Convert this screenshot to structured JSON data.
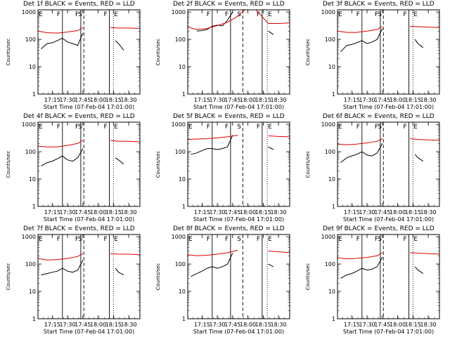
{
  "colors": {
    "events": "#000000",
    "lld": "#dd0000",
    "background": "#ffffff",
    "axes": "#000000"
  },
  "chart_data": [
    {
      "type": "line",
      "title": "Det 1f BLACK = Events, RED = LLD",
      "ylabel": "Counts/sec",
      "xlabel": "Start Time (07-Feb-04 17:01:00)",
      "x_ticks": [
        "17:15",
        "17:30",
        "17:45",
        "18:00",
        "18:15",
        "18:30"
      ],
      "y_ticks": [
        "1",
        "10",
        "100",
        "1000"
      ],
      "ylim": [
        1,
        1200
      ],
      "yscale": "log",
      "xlim": [
        "17:01",
        "18:41"
      ],
      "markers": [
        {
          "label": "E",
          "time": "17:01"
        },
        {
          "label": "F",
          "time": "17:25"
        },
        {
          "label": "F",
          "time": "17:43"
        },
        {
          "label": "S",
          "time": "17:46"
        },
        {
          "label": "F",
          "time": "18:11"
        },
        {
          "label": "E",
          "time": "18:15"
        }
      ],
      "series": [
        {
          "name": "Events",
          "x": [
            "17:04",
            "17:10",
            "17:15",
            "17:20",
            "17:25",
            "17:30",
            "17:35",
            "17:40",
            "17:45",
            "18:17",
            "18:20",
            "18:25"
          ],
          "values": [
            45,
            70,
            75,
            90,
            110,
            80,
            70,
            60,
            170,
            90,
            70,
            40
          ]
        },
        {
          "name": "LLD",
          "x": [
            "17:01",
            "17:10",
            "17:20",
            "17:30",
            "17:40",
            "17:45",
            "18:12",
            "18:20",
            "18:30",
            "18:41"
          ],
          "values": [
            200,
            175,
            170,
            185,
            210,
            270,
            270,
            260,
            260,
            250
          ]
        }
      ]
    },
    {
      "type": "line",
      "title": "Det 2f BLACK = Events, RED = LLD",
      "ylabel": "Counts/sec",
      "xlabel": "Start Time (07-Feb-04 17:01:00)",
      "x_ticks": [
        "17:15",
        "17:30",
        "17:45",
        "18:00",
        "18:15",
        "18:30"
      ],
      "y_ticks": [
        "1",
        "10",
        "100",
        "1000"
      ],
      "ylim": [
        1,
        1200
      ],
      "yscale": "log",
      "xlim": [
        "17:01",
        "18:41"
      ],
      "markers": [
        {
          "label": "F",
          "time": "17:25"
        },
        {
          "label": "F",
          "time": "17:43"
        },
        {
          "label": "S",
          "time": "17:55"
        },
        {
          "label": "F",
          "time": "18:14"
        },
        {
          "label": "E",
          "time": "18:19"
        }
      ],
      "series": [
        {
          "name": "Events",
          "x": [
            "17:10",
            "17:15",
            "17:20",
            "17:25",
            "17:30",
            "17:35",
            "17:40",
            "17:45",
            "18:20",
            "18:25"
          ],
          "values": [
            200,
            210,
            230,
            300,
            330,
            310,
            500,
            1000,
            200,
            150
          ]
        },
        {
          "name": "LLD",
          "x": [
            "17:01",
            "17:10",
            "17:20",
            "17:30",
            "17:40",
            "17:50",
            "17:57",
            "18:08",
            "18:20",
            "18:30",
            "18:41"
          ],
          "values": [
            280,
            230,
            250,
            320,
            420,
            700,
            1200,
            1200,
            380,
            380,
            400
          ]
        }
      ]
    },
    {
      "type": "line",
      "title": "Det 3f BLACK = Events, RED = LLD",
      "ylabel": "Counts/sec",
      "xlabel": "Start Time (07-Feb-04 17:01:00)",
      "x_ticks": [
        "17:15",
        "17:30",
        "17:45",
        "18:00",
        "18:15",
        "18:30"
      ],
      "y_ticks": [
        "1",
        "10",
        "100",
        "1000"
      ],
      "ylim": [
        1,
        1200
      ],
      "yscale": "log",
      "xlim": [
        "17:01",
        "18:41"
      ],
      "markers": [
        {
          "label": "E",
          "time": "17:01"
        },
        {
          "label": "F",
          "time": "17:25"
        },
        {
          "label": "F",
          "time": "17:43"
        },
        {
          "label": "S",
          "time": "17:46"
        },
        {
          "label": "F",
          "time": "18:11"
        },
        {
          "label": "E",
          "time": "18:15"
        }
      ],
      "series": [
        {
          "name": "Events",
          "x": [
            "17:04",
            "17:10",
            "17:15",
            "17:20",
            "17:25",
            "17:30",
            "17:35",
            "17:40",
            "17:45",
            "18:17",
            "18:20",
            "18:25"
          ],
          "values": [
            35,
            60,
            65,
            75,
            90,
            70,
            80,
            100,
            250,
            100,
            70,
            50
          ]
        },
        {
          "name": "LLD",
          "x": [
            "17:01",
            "17:10",
            "17:20",
            "17:30",
            "17:40",
            "17:45",
            "18:12",
            "18:20",
            "18:30",
            "18:41"
          ],
          "values": [
            200,
            180,
            180,
            200,
            230,
            300,
            300,
            290,
            280,
            270
          ]
        }
      ]
    },
    {
      "type": "line",
      "title": "Det 4f BLACK = Events, RED = LLD",
      "ylabel": "Counts/sec",
      "xlabel": "Start Time (07-Feb-04 17:01:00)",
      "x_ticks": [
        "17:15",
        "17:30",
        "17:45",
        "18:00",
        "18:15",
        "18:30"
      ],
      "y_ticks": [
        "1",
        "10",
        "100",
        "1000"
      ],
      "ylim": [
        1,
        1200
      ],
      "yscale": "log",
      "xlim": [
        "17:01",
        "18:41"
      ],
      "markers": [
        {
          "label": "E",
          "time": "17:01"
        },
        {
          "label": "F",
          "time": "17:25"
        },
        {
          "label": "F",
          "time": "17:43"
        },
        {
          "label": "S",
          "time": "17:46"
        },
        {
          "label": "F",
          "time": "18:11"
        },
        {
          "label": "E",
          "time": "18:15"
        }
      ],
      "series": [
        {
          "name": "Events",
          "x": [
            "17:04",
            "17:10",
            "17:15",
            "17:20",
            "17:25",
            "17:30",
            "17:35",
            "17:40",
            "17:45",
            "18:17",
            "18:20",
            "18:25"
          ],
          "values": [
            30,
            40,
            45,
            55,
            70,
            50,
            45,
            60,
            130,
            60,
            50,
            35
          ]
        },
        {
          "name": "LLD",
          "x": [
            "17:01",
            "17:10",
            "17:20",
            "17:30",
            "17:40",
            "17:45",
            "18:12",
            "18:20",
            "18:30",
            "18:41"
          ],
          "values": [
            160,
            150,
            150,
            170,
            200,
            260,
            260,
            240,
            240,
            230
          ]
        }
      ]
    },
    {
      "type": "line",
      "title": "Det 5f BLACK = Events, RED = LLD",
      "ylabel": "Counts/sec",
      "xlabel": "Start Time (07-Feb-04 17:01:00)",
      "x_ticks": [
        "17:15",
        "17:30",
        "17:45",
        "18:00",
        "18:15",
        "18:30"
      ],
      "y_ticks": [
        "1",
        "10",
        "100",
        "1000"
      ],
      "ylim": [
        1,
        1200
      ],
      "yscale": "log",
      "xlim": [
        "17:01",
        "18:41"
      ],
      "markers": [
        {
          "label": "E",
          "time": "17:01"
        },
        {
          "label": "F",
          "time": "17:25"
        },
        {
          "label": "F",
          "time": "17:43"
        },
        {
          "label": "S",
          "time": "17:55"
        },
        {
          "label": "F",
          "time": "18:14"
        },
        {
          "label": "E",
          "time": "18:19"
        }
      ],
      "series": [
        {
          "name": "Events",
          "x": [
            "17:04",
            "17:10",
            "17:15",
            "17:20",
            "17:25",
            "17:30",
            "17:35",
            "17:40",
            "17:45",
            "18:20",
            "18:25"
          ],
          "values": [
            80,
            90,
            110,
            130,
            130,
            120,
            130,
            150,
            400,
            150,
            120
          ]
        },
        {
          "name": "LLD",
          "x": [
            "17:01",
            "17:10",
            "17:20",
            "17:30",
            "17:40",
            "17:50",
            "18:20",
            "18:30",
            "18:41"
          ],
          "values": [
            280,
            290,
            300,
            320,
            350,
            400,
            380,
            360,
            350
          ]
        }
      ]
    },
    {
      "type": "line",
      "title": "Det 6f BLACK = Events, RED = LLD",
      "ylabel": "Counts/sec",
      "xlabel": "Start Time (07-Feb-04 17:01:00)",
      "x_ticks": [
        "17:15",
        "17:30",
        "17:45",
        "18:00",
        "18:15",
        "18:30"
      ],
      "y_ticks": [
        "1",
        "10",
        "100",
        "1000"
      ],
      "ylim": [
        1,
        1200
      ],
      "yscale": "log",
      "xlim": [
        "17:01",
        "18:41"
      ],
      "markers": [
        {
          "label": "E",
          "time": "17:01"
        },
        {
          "label": "F",
          "time": "17:25"
        },
        {
          "label": "F",
          "time": "17:43"
        },
        {
          "label": "S",
          "time": "17:46"
        },
        {
          "label": "F",
          "time": "18:11"
        },
        {
          "label": "E",
          "time": "18:15"
        }
      ],
      "series": [
        {
          "name": "Events",
          "x": [
            "17:04",
            "17:10",
            "17:15",
            "17:20",
            "17:25",
            "17:30",
            "17:35",
            "17:40",
            "17:45",
            "18:17",
            "18:20",
            "18:25"
          ],
          "values": [
            40,
            60,
            70,
            80,
            100,
            75,
            70,
            90,
            200,
            80,
            60,
            45
          ]
        },
        {
          "name": "LLD",
          "x": [
            "17:01",
            "17:10",
            "17:20",
            "17:30",
            "17:40",
            "17:45",
            "18:12",
            "18:20",
            "18:30",
            "18:41"
          ],
          "values": [
            190,
            180,
            190,
            210,
            240,
            300,
            300,
            280,
            270,
            260
          ]
        }
      ]
    },
    {
      "type": "line",
      "title": "Det 7f BLACK = Events, RED = LLD",
      "ylabel": "Counts/sec",
      "xlabel": "Start Time (07-Feb-04 17:01:00)",
      "x_ticks": [
        "17:15",
        "17:30",
        "17:45",
        "18:00",
        "18:15",
        "18:30"
      ],
      "y_ticks": [
        "1",
        "10",
        "100",
        "1000"
      ],
      "ylim": [
        1,
        1200
      ],
      "yscale": "log",
      "xlim": [
        "17:01",
        "18:41"
      ],
      "markers": [
        {
          "label": "E",
          "time": "17:01"
        },
        {
          "label": "F",
          "time": "17:25"
        },
        {
          "label": "F",
          "time": "17:43"
        },
        {
          "label": "S",
          "time": "17:46"
        },
        {
          "label": "F",
          "time": "18:11"
        },
        {
          "label": "E",
          "time": "18:15"
        }
      ],
      "series": [
        {
          "name": "Events",
          "x": [
            "17:04",
            "17:10",
            "17:15",
            "17:20",
            "17:25",
            "17:30",
            "17:35",
            "17:40",
            "17:45",
            "18:17",
            "18:20",
            "18:25"
          ],
          "values": [
            40,
            45,
            50,
            55,
            70,
            55,
            50,
            60,
            140,
            70,
            50,
            40
          ]
        },
        {
          "name": "LLD",
          "x": [
            "17:01",
            "17:10",
            "17:20",
            "17:30",
            "17:40",
            "17:45",
            "18:12",
            "18:20",
            "18:30",
            "18:41"
          ],
          "values": [
            160,
            140,
            145,
            160,
            190,
            240,
            240,
            230,
            230,
            220
          ]
        }
      ]
    },
    {
      "type": "line",
      "title": "Det 8f BLACK = Events, RED = LLD",
      "ylabel": "Counts/sec",
      "xlabel": "Start Time (07-Feb-04 17:01:00)",
      "x_ticks": [
        "17:15",
        "17:30",
        "17:45",
        "18:00",
        "18:15",
        "18:30"
      ],
      "y_ticks": [
        "1",
        "10",
        "100",
        "1000"
      ],
      "ylim": [
        1,
        1200
      ],
      "yscale": "log",
      "xlim": [
        "17:01",
        "18:41"
      ],
      "markers": [
        {
          "label": "E",
          "time": "17:01"
        },
        {
          "label": "F",
          "time": "17:25"
        },
        {
          "label": "F",
          "time": "17:43"
        },
        {
          "label": "S",
          "time": "17:55"
        },
        {
          "label": "F",
          "time": "18:14"
        },
        {
          "label": "E",
          "time": "18:19"
        }
      ],
      "series": [
        {
          "name": "Events",
          "x": [
            "17:04",
            "17:10",
            "17:15",
            "17:20",
            "17:25",
            "17:30",
            "17:35",
            "17:40",
            "17:45",
            "18:20",
            "18:25"
          ],
          "values": [
            35,
            45,
            55,
            70,
            80,
            70,
            80,
            100,
            250,
            100,
            80
          ]
        },
        {
          "name": "LLD",
          "x": [
            "17:01",
            "17:10",
            "17:20",
            "17:30",
            "17:40",
            "17:50",
            "18:20",
            "18:30",
            "18:41"
          ],
          "values": [
            220,
            200,
            210,
            230,
            260,
            320,
            300,
            280,
            260
          ]
        }
      ]
    },
    {
      "type": "line",
      "title": "Det 9f BLACK = Events, RED = LLD",
      "ylabel": "Counts/sec",
      "xlabel": "Start Time (07-Feb-04 17:01:00)",
      "x_ticks": [
        "17:15",
        "17:30",
        "17:45",
        "18:00",
        "18:15",
        "18:30"
      ],
      "y_ticks": [
        "1",
        "10",
        "100",
        "1000"
      ],
      "ylim": [
        1,
        1200
      ],
      "yscale": "log",
      "xlim": [
        "17:01",
        "18:41"
      ],
      "markers": [
        {
          "label": "E",
          "time": "17:01"
        },
        {
          "label": "F",
          "time": "17:25"
        },
        {
          "label": "F",
          "time": "17:43"
        },
        {
          "label": "S",
          "time": "17:46"
        },
        {
          "label": "F",
          "time": "18:11"
        },
        {
          "label": "E",
          "time": "18:15"
        }
      ],
      "series": [
        {
          "name": "Events",
          "x": [
            "17:04",
            "17:10",
            "17:15",
            "17:20",
            "17:25",
            "17:30",
            "17:35",
            "17:40",
            "17:45",
            "18:17",
            "18:20",
            "18:25"
          ],
          "values": [
            30,
            40,
            45,
            55,
            70,
            60,
            65,
            80,
            180,
            80,
            60,
            45
          ]
        },
        {
          "name": "LLD",
          "x": [
            "17:01",
            "17:10",
            "17:20",
            "17:30",
            "17:40",
            "17:45",
            "18:12",
            "18:20",
            "18:30",
            "18:41"
          ],
          "values": [
            170,
            155,
            160,
            175,
            200,
            260,
            260,
            250,
            240,
            230
          ]
        }
      ]
    }
  ]
}
